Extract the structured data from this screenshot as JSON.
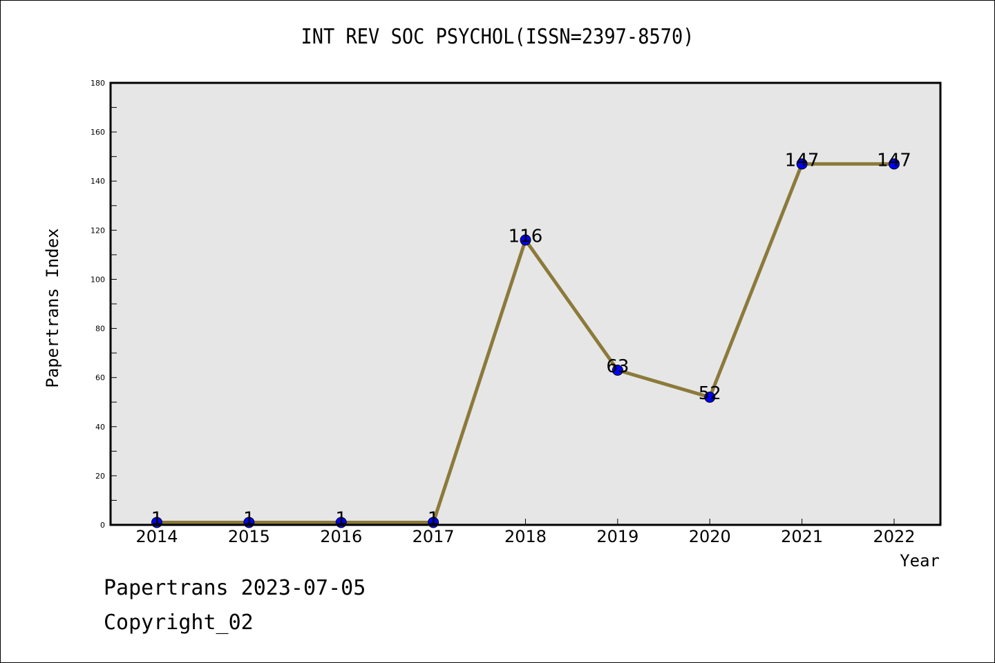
{
  "chart_data": {
    "type": "line",
    "title": "INT REV SOC PSYCHOL(ISSN=2397-8570)",
    "xlabel": "Year",
    "ylabel": "Papertrans Index",
    "categories": [
      "2014",
      "2015",
      "2016",
      "2017",
      "2018",
      "2019",
      "2020",
      "2021",
      "2022"
    ],
    "series": [
      {
        "values": [
          1,
          1,
          1,
          1,
          116,
          63,
          52,
          147,
          147
        ]
      }
    ],
    "data_labels": [
      "1",
      "1",
      "1",
      "1",
      "116",
      "63",
      "52",
      "147",
      "147"
    ],
    "ylim": [
      0,
      180
    ],
    "yticks": [
      "0",
      "20",
      "40",
      "60",
      "80",
      "100",
      "120",
      "140",
      "160",
      "180"
    ],
    "grid": false,
    "line_color": "#8b7a3a",
    "marker_color": "#0000ff",
    "plot_background": "#e6e6e6"
  },
  "footer": {
    "line1": "Papertrans 2023-07-05",
    "line2": "Copyright_02"
  }
}
